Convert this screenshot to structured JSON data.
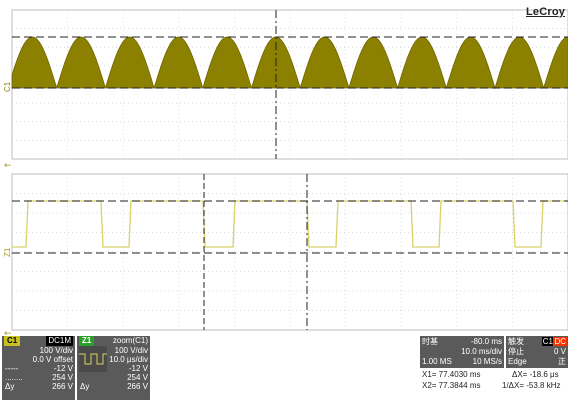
{
  "brand": "LeCroy",
  "colors": {
    "trace": "#8c8000",
    "trace_light": "#d9d267",
    "grid": "#bdbdbd",
    "panel_bg": "#5a5a5a",
    "c1_tag": "#c8c020",
    "z1_tag": "#2aa02a",
    "c1_tag_right": "#ff3300"
  },
  "markers": {
    "c1_label": "C1",
    "z1_label": "Z1",
    "ground_arrow": "←"
  },
  "c1_panel": {
    "tag": "C1",
    "coupling": "DC1M",
    "vdiv": "100 V/div",
    "offset": "0.0 V offset",
    "r1_label": "-----",
    "r1": "-12 V",
    "r2_label": "........",
    "r2": "254 V",
    "dy_label": "Δy",
    "dy": "266 V"
  },
  "z1_panel": {
    "tag": "Z1",
    "source": "zoom(C1)",
    "vdiv": "100 V/div",
    "tdiv": "10.0 μs/div",
    "r1": "-12 V",
    "r2": "254 V",
    "dy_label": "Δy",
    "dy": "266 V"
  },
  "timebase": {
    "label": "时基",
    "delay": "-80.0 ms",
    "tdiv": "10.0 ms/div",
    "samples": "1.00 MS",
    "rate": "10 MS/s"
  },
  "trigger": {
    "label": "触发",
    "channel": "C1",
    "coupling": "DC",
    "level": "0 V",
    "mode": "停止",
    "type": "Edge",
    "slope": "正"
  },
  "cursors": {
    "x1": "X1= 77.4030 ms",
    "dx": "ΔX= -18.6 μs",
    "x2": "X2= 77.3844 ms",
    "inv_dx": "1/ΔX= -53.8 kHz"
  }
}
